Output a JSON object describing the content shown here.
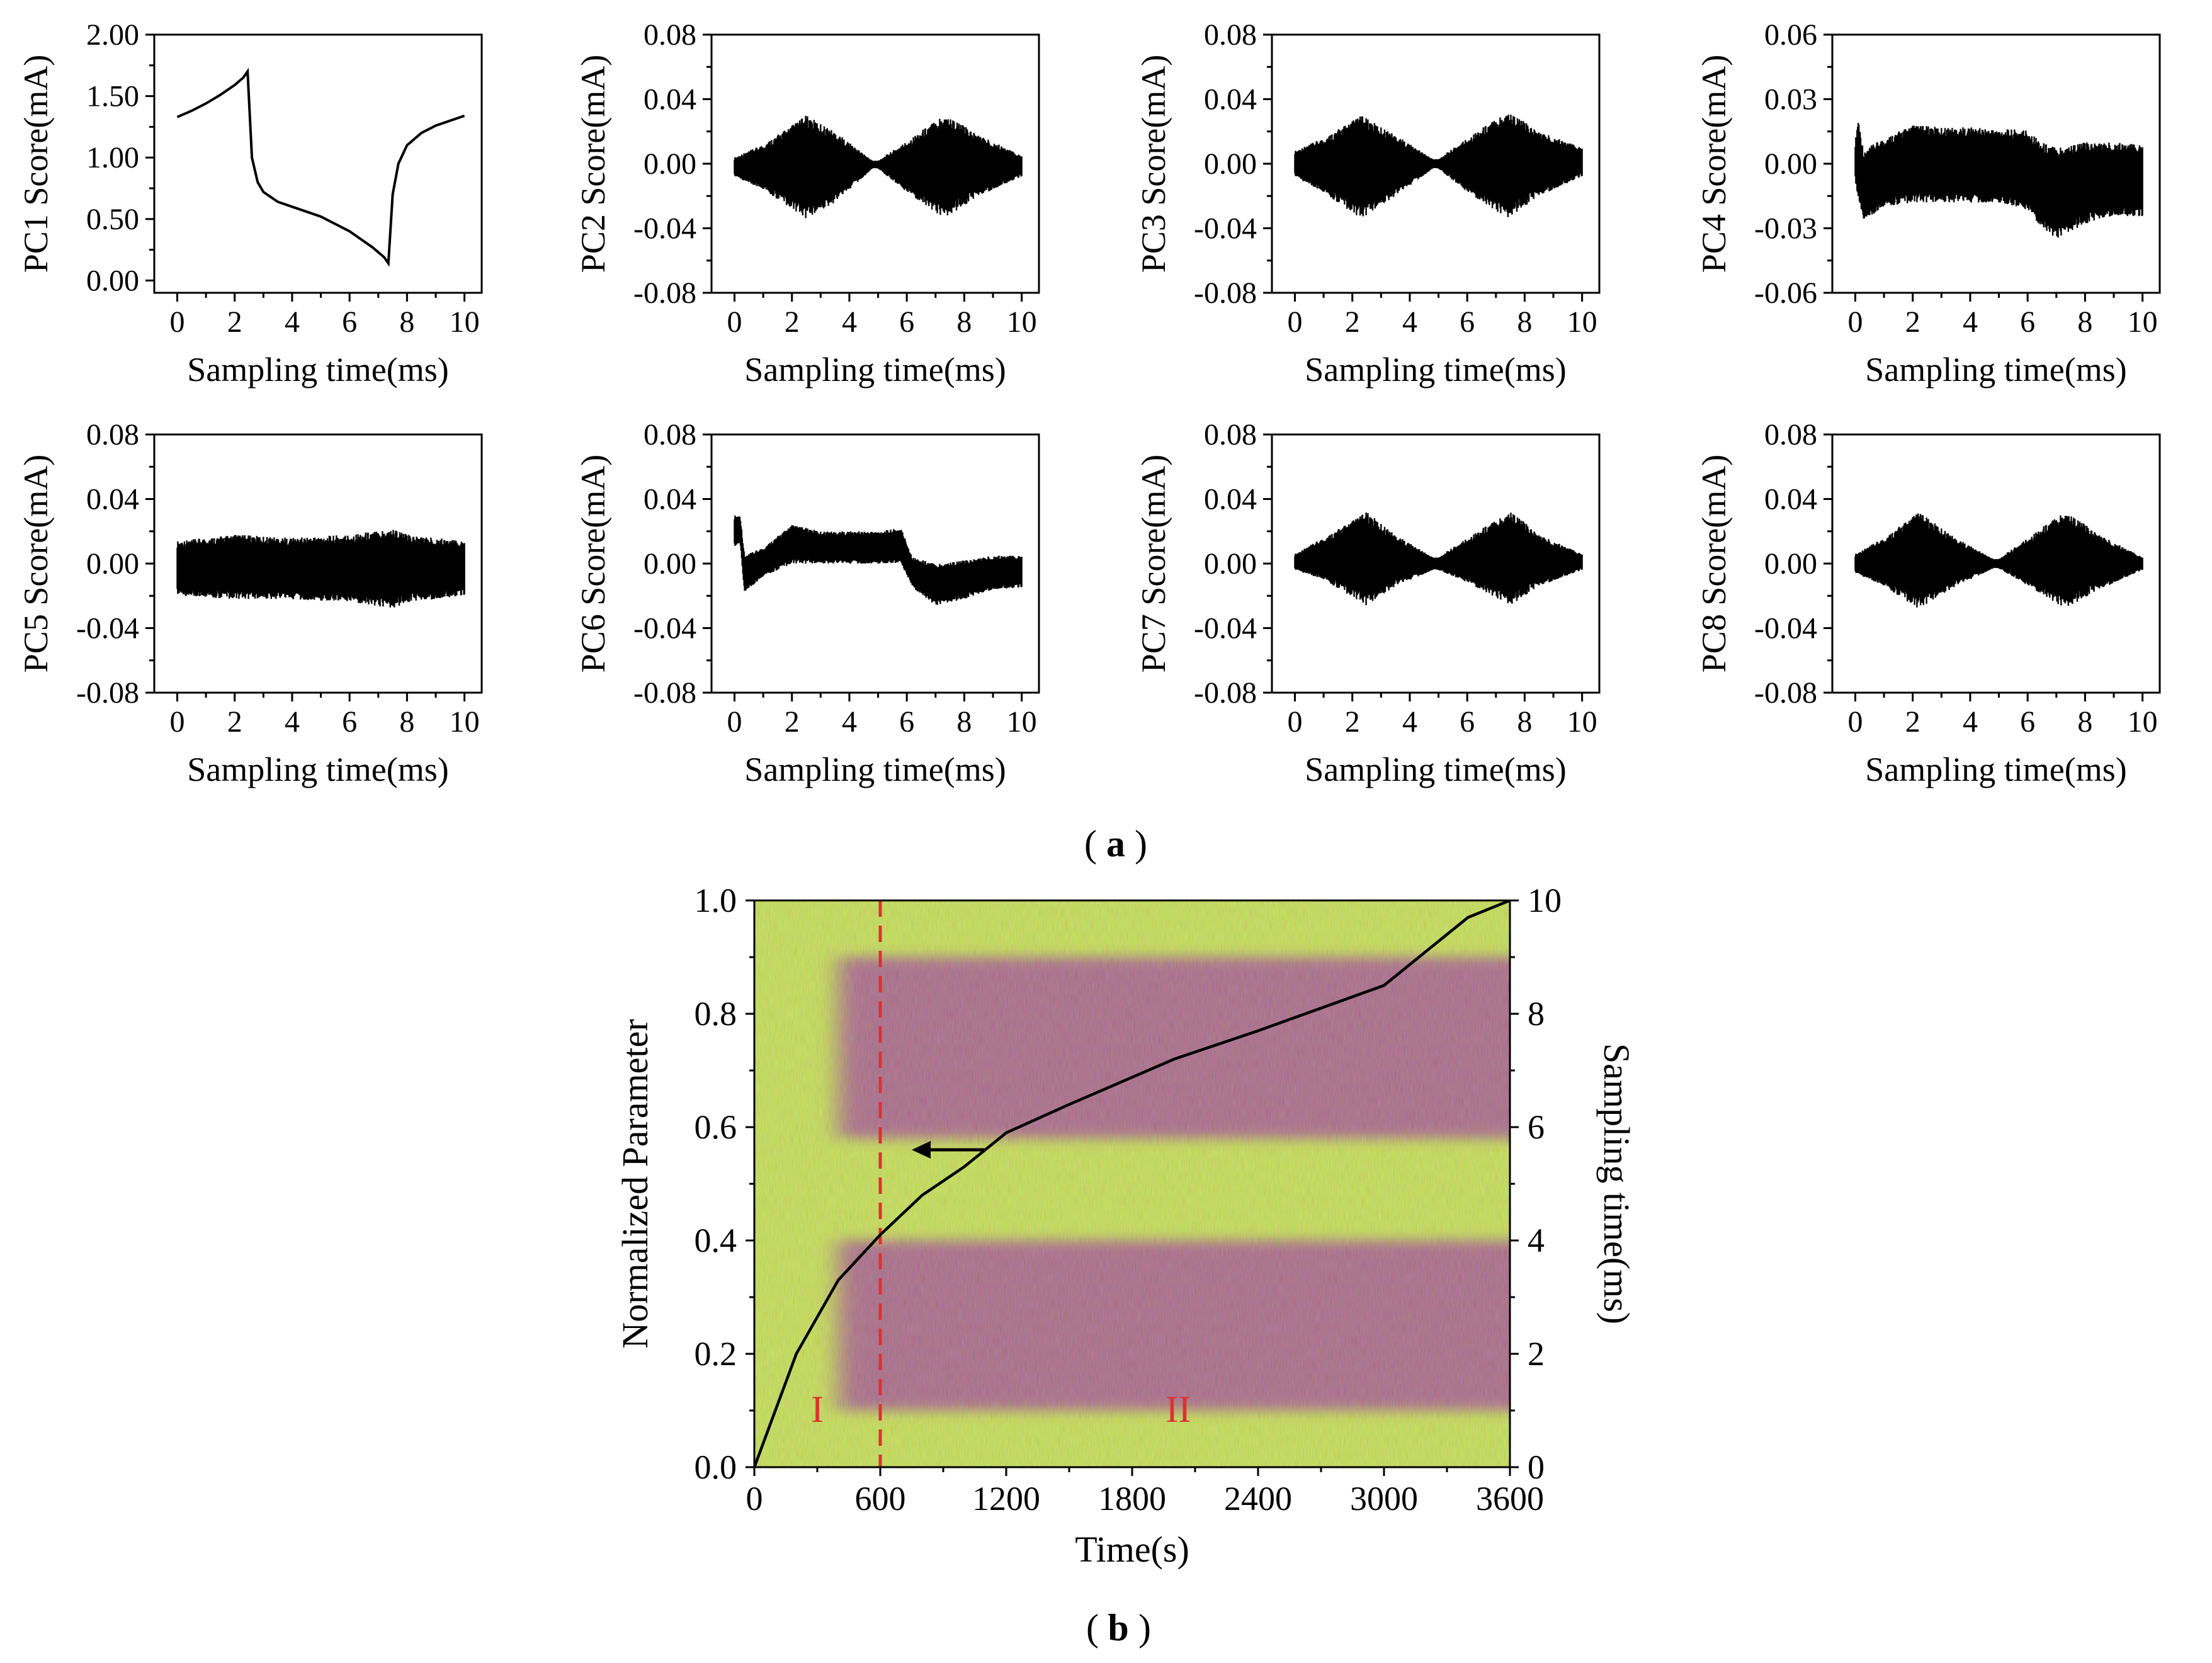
{
  "figure": {
    "caption_a": {
      "open": "(",
      "letter": "a",
      "close": ")"
    },
    "caption_b": {
      "open": "(",
      "letter": "b",
      "close": ")"
    }
  },
  "chart_data": [
    {
      "id": "pc1",
      "type": "line",
      "title": "",
      "xlabel": "Sampling time(ms)",
      "ylabel": "PC1 Score(mA)",
      "xlim": [
        -0.8,
        10.6
      ],
      "ylim": [
        -0.1,
        2.0
      ],
      "xticks": [
        0,
        2,
        4,
        6,
        8,
        10
      ],
      "xtick_labels": [
        "0",
        "2",
        "4",
        "6",
        "8",
        "10"
      ],
      "yticks": [
        0,
        0.5,
        1.0,
        1.5,
        2.0
      ],
      "ytick_labels": [
        "0.00",
        "0.50",
        "1.00",
        "1.50",
        "2.00"
      ],
      "series": [
        {
          "name": "PC1",
          "x": [
            0,
            0.5,
            1,
            1.5,
            2,
            2.3,
            2.45,
            2.6,
            2.8,
            3,
            3.5,
            4,
            5,
            6,
            6.8,
            7.2,
            7.35,
            7.5,
            7.7,
            8,
            8.5,
            9,
            9.5,
            10
          ],
          "y": [
            1.33,
            1.38,
            1.44,
            1.51,
            1.59,
            1.65,
            1.7,
            1.0,
            0.8,
            0.72,
            0.64,
            0.6,
            0.52,
            0.4,
            0.27,
            0.19,
            0.14,
            0.7,
            0.95,
            1.1,
            1.2,
            1.26,
            1.3,
            1.34
          ]
        }
      ]
    },
    {
      "id": "pc2",
      "type": "envelope",
      "xlabel": "Sampling time(ms)",
      "ylabel": "PC2 Score(mA)",
      "xlim": [
        -0.8,
        10.6
      ],
      "ylim": [
        -0.08,
        0.08
      ],
      "xticks": [
        0,
        2,
        4,
        6,
        8,
        10
      ],
      "xtick_labels": [
        "0",
        "2",
        "4",
        "6",
        "8",
        "10"
      ],
      "yticks": [
        -0.08,
        -0.04,
        0,
        0.04,
        0.08
      ],
      "ytick_labels": [
        "-0.08",
        "-0.04",
        "0.00",
        "0.04",
        "0.08"
      ],
      "series": [
        {
          "name": "PC2 envelope",
          "x": [
            0,
            1,
            2.5,
            3.5,
            4.8,
            5,
            6,
            7.3,
            8.5,
            10
          ],
          "upper": [
            0.004,
            0.012,
            0.03,
            0.02,
            0.002,
            0.002,
            0.014,
            0.031,
            0.018,
            0.005
          ],
          "lower": [
            -0.008,
            -0.016,
            -0.034,
            -0.024,
            -0.003,
            -0.003,
            -0.018,
            -0.034,
            -0.02,
            -0.008
          ]
        }
      ]
    },
    {
      "id": "pc3",
      "type": "envelope",
      "xlabel": "Sampling time(ms)",
      "ylabel": "PC3 Score(mA)",
      "xlim": [
        -0.8,
        10.6
      ],
      "ylim": [
        -0.08,
        0.08
      ],
      "xticks": [
        0,
        2,
        4,
        6,
        8,
        10
      ],
      "xtick_labels": [
        "0",
        "2",
        "4",
        "6",
        "8",
        "10"
      ],
      "yticks": [
        -0.08,
        -0.04,
        0,
        0.04,
        0.08
      ],
      "ytick_labels": [
        "-0.08",
        "-0.04",
        "0.00",
        "0.04",
        "0.08"
      ],
      "series": [
        {
          "name": "PC3 envelope",
          "x": [
            0,
            1,
            2.3,
            3.5,
            4.8,
            5,
            6,
            7.4,
            8.5,
            10
          ],
          "upper": [
            0.008,
            0.016,
            0.03,
            0.018,
            0.003,
            0.003,
            0.016,
            0.033,
            0.02,
            0.01
          ],
          "lower": [
            -0.008,
            -0.018,
            -0.034,
            -0.02,
            -0.003,
            -0.003,
            -0.018,
            -0.034,
            -0.02,
            -0.008
          ]
        }
      ]
    },
    {
      "id": "pc4",
      "type": "envelope",
      "xlabel": "Sampling time(ms)",
      "ylabel": "PC4 Score(mA)",
      "xlim": [
        -0.8,
        10.6
      ],
      "ylim": [
        -0.06,
        0.06
      ],
      "xticks": [
        0,
        2,
        4,
        6,
        8,
        10
      ],
      "xtick_labels": [
        "0",
        "2",
        "4",
        "6",
        "8",
        "10"
      ],
      "yticks": [
        -0.06,
        -0.03,
        0,
        0.03,
        0.06
      ],
      "ytick_labels": [
        "-0.06",
        "-0.03",
        "0.00",
        "0.03",
        "0.06"
      ],
      "series": [
        {
          "name": "PC4 envelope",
          "x": [
            0,
            0.1,
            0.3,
            0.5,
            1,
            2,
            3,
            4,
            5,
            6,
            6.5,
            7,
            8,
            9,
            10
          ],
          "upper": [
            0.01,
            0.022,
            0.005,
            0.008,
            0.012,
            0.018,
            0.017,
            0.017,
            0.016,
            0.016,
            0.01,
            0.008,
            0.01,
            0.01,
            0.009
          ],
          "lower": [
            -0.008,
            -0.018,
            -0.026,
            -0.025,
            -0.02,
            -0.018,
            -0.018,
            -0.018,
            -0.018,
            -0.022,
            -0.03,
            -0.035,
            -0.028,
            -0.024,
            -0.025
          ]
        }
      ]
    },
    {
      "id": "pc5",
      "type": "envelope",
      "xlabel": "Sampling time(ms)",
      "ylabel": "PC5 Score(mA)",
      "xlim": [
        -0.8,
        10.6
      ],
      "ylim": [
        -0.08,
        0.08
      ],
      "xticks": [
        0,
        2,
        4,
        6,
        8,
        10
      ],
      "xtick_labels": [
        "0",
        "2",
        "4",
        "6",
        "8",
        "10"
      ],
      "yticks": [
        -0.08,
        -0.04,
        0,
        0.04,
        0.08
      ],
      "ytick_labels": [
        "-0.08",
        "-0.04",
        "0.00",
        "0.04",
        "0.08"
      ],
      "series": [
        {
          "name": "PC5 envelope",
          "x": [
            0,
            2,
            4,
            6,
            7.5,
            8,
            10
          ],
          "upper": [
            0.014,
            0.018,
            0.016,
            0.018,
            0.022,
            0.018,
            0.014
          ],
          "lower": [
            -0.02,
            -0.022,
            -0.022,
            -0.024,
            -0.028,
            -0.024,
            -0.02
          ]
        }
      ]
    },
    {
      "id": "pc6",
      "type": "envelope",
      "xlabel": "Sampling time(ms)",
      "ylabel": "PC6 Score(mA)",
      "xlim": [
        -0.8,
        10.6
      ],
      "ylim": [
        -0.08,
        0.08
      ],
      "xticks": [
        0,
        2,
        4,
        6,
        8,
        10
      ],
      "xtick_labels": [
        "0",
        "2",
        "4",
        "6",
        "8",
        "10"
      ],
      "yticks": [
        -0.08,
        -0.04,
        0,
        0.04,
        0.08
      ],
      "ytick_labels": [
        "-0.08",
        "-0.04",
        "0.00",
        "0.04",
        "0.08"
      ],
      "series": [
        {
          "name": "PC6 envelope",
          "x": [
            0,
            0.2,
            0.35,
            1,
            2,
            3,
            4,
            5,
            5.8,
            6.2,
            7,
            8,
            9,
            10
          ],
          "upper": [
            0.03,
            0.03,
            0.005,
            0.01,
            0.024,
            0.02,
            0.02,
            0.02,
            0.022,
            0.004,
            0.0,
            0.002,
            0.005,
            0.005
          ],
          "lower": [
            0.01,
            0.012,
            -0.018,
            -0.008,
            0.0,
            0.0,
            0.0,
            0.0,
            0.0,
            -0.015,
            -0.026,
            -0.022,
            -0.016,
            -0.015
          ]
        }
      ]
    },
    {
      "id": "pc7",
      "type": "envelope",
      "xlabel": "Sampling time(ms)",
      "ylabel": "PC7 Score(mA)",
      "xlim": [
        -0.8,
        10.6
      ],
      "ylim": [
        -0.08,
        0.08
      ],
      "xticks": [
        0,
        2,
        4,
        6,
        8,
        10
      ],
      "xtick_labels": [
        "0",
        "2",
        "4",
        "6",
        "8",
        "10"
      ],
      "yticks": [
        -0.08,
        -0.04,
        0,
        0.04,
        0.08
      ],
      "ytick_labels": [
        "-0.08",
        "-0.04",
        "0.00",
        "0.04",
        "0.08"
      ],
      "series": [
        {
          "name": "PC7 envelope",
          "x": [
            0,
            1,
            2.5,
            3.5,
            4.8,
            5,
            6,
            7.5,
            8.5,
            10
          ],
          "upper": [
            0.006,
            0.016,
            0.032,
            0.018,
            0.004,
            0.004,
            0.016,
            0.033,
            0.018,
            0.006
          ],
          "lower": [
            -0.004,
            -0.01,
            -0.026,
            -0.014,
            -0.004,
            -0.004,
            -0.012,
            -0.026,
            -0.014,
            -0.004
          ]
        }
      ]
    },
    {
      "id": "pc8",
      "type": "envelope",
      "xlabel": "Sampling time(ms)",
      "ylabel": "PC8 Score(mA)",
      "xlim": [
        -0.8,
        10.6
      ],
      "ylim": [
        -0.08,
        0.08
      ],
      "xticks": [
        0,
        2,
        4,
        6,
        8,
        10
      ],
      "xtick_labels": [
        "0",
        "2",
        "4",
        "6",
        "8",
        "10"
      ],
      "yticks": [
        -0.08,
        -0.04,
        0,
        0.04,
        0.08
      ],
      "ytick_labels": [
        "-0.08",
        "-0.04",
        "0.00",
        "0.04",
        "0.08"
      ],
      "series": [
        {
          "name": "PC8 envelope",
          "x": [
            0,
            1,
            2.2,
            3.5,
            4.8,
            5,
            6,
            7.3,
            8.5,
            10
          ],
          "upper": [
            0.006,
            0.016,
            0.032,
            0.016,
            0.003,
            0.003,
            0.016,
            0.033,
            0.018,
            0.004
          ],
          "lower": [
            -0.006,
            -0.014,
            -0.028,
            -0.014,
            -0.003,
            -0.003,
            -0.014,
            -0.028,
            -0.016,
            -0.004
          ]
        }
      ]
    },
    {
      "id": "b",
      "type": "heatmap",
      "title": "",
      "xlabel": "Time(s)",
      "ylabel": "Normalized Parameter",
      "y2label": "Sampling time(ms)",
      "xlim": [
        0,
        3600
      ],
      "ylim": [
        0,
        1.0
      ],
      "y2lim": [
        0,
        10
      ],
      "xticks": [
        0,
        600,
        1200,
        1800,
        2400,
        3000,
        3600
      ],
      "xtick_labels": [
        "0",
        "600",
        "1200",
        "1800",
        "2400",
        "3000",
        "3600"
      ],
      "yticks": [
        0,
        0.2,
        0.4,
        0.6,
        0.8,
        1.0
      ],
      "ytick_labels": [
        "0.0",
        "0.2",
        "0.4",
        "0.6",
        "0.8",
        "1.0"
      ],
      "y2ticks": [
        0,
        2,
        4,
        6,
        8,
        10
      ],
      "y2tick_labels": [
        "0",
        "2",
        "4",
        "6",
        "8",
        "10"
      ],
      "colors": {
        "low": "#c8e830",
        "high": "#a0407a"
      },
      "bands": [
        {
          "x": [
            400,
            3600
          ],
          "y": [
            0.58,
            0.9
          ],
          "color": "high"
        },
        {
          "x": [
            400,
            3600
          ],
          "y": [
            0.1,
            0.4
          ],
          "color": "high"
        }
      ],
      "curve": {
        "x": [
          0,
          200,
          400,
          600,
          800,
          1000,
          1100,
          1200,
          1500,
          2000,
          2400,
          3000,
          3400,
          3600
        ],
        "y2": [
          0,
          2.0,
          3.3,
          4.1,
          4.8,
          5.3,
          5.6,
          5.9,
          6.4,
          7.2,
          7.7,
          8.5,
          9.7,
          10.0
        ]
      },
      "divider": {
        "x": 600,
        "color": "#e03030"
      },
      "arrow": {
        "x_from": 1100,
        "x_to": 750,
        "y": 0.56
      },
      "region_labels": [
        {
          "text": "I",
          "x": 300,
          "y": 0.08
        },
        {
          "text": "II",
          "x": 2020,
          "y": 0.08
        }
      ]
    }
  ]
}
